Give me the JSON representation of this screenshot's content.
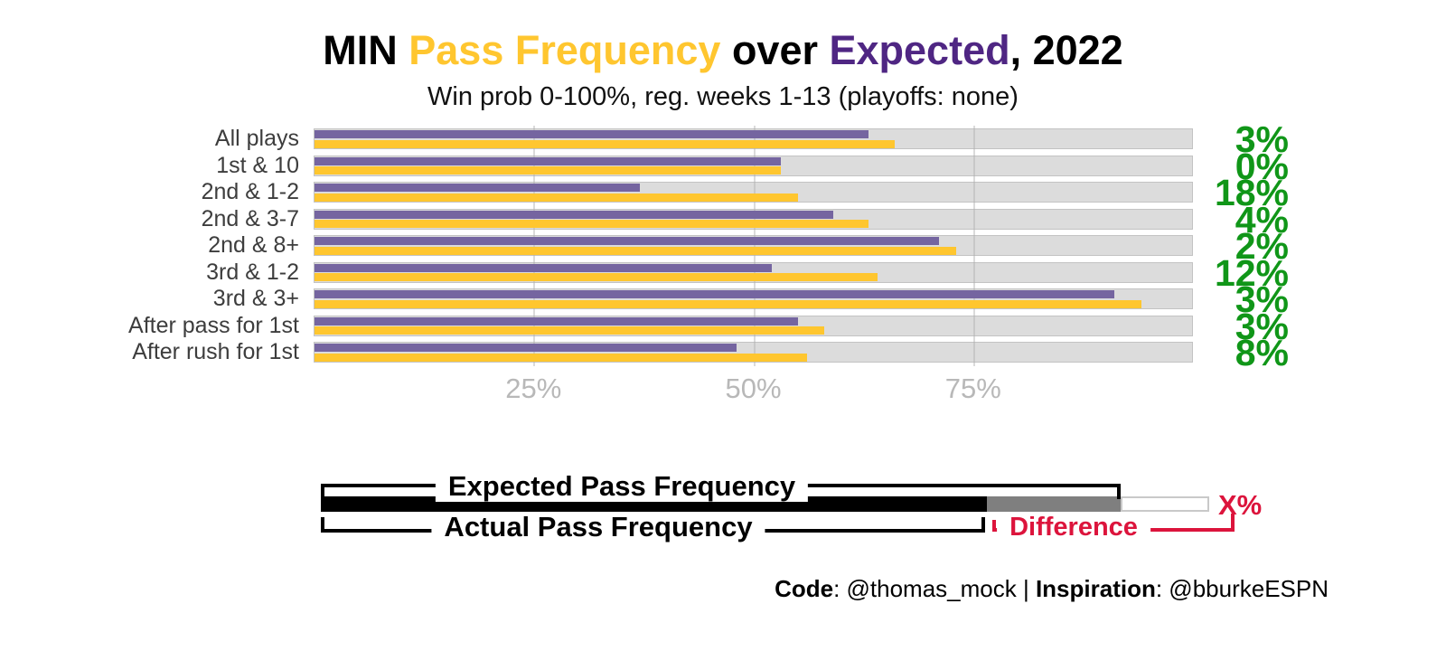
{
  "title": {
    "segments": [
      {
        "text": "MIN ",
        "color": "#000000"
      },
      {
        "text": "Pass Frequency",
        "color": "#FFC62F"
      },
      {
        "text": " over ",
        "color": "#000000"
      },
      {
        "text": "Expected",
        "color": "#4F2683"
      },
      {
        "text": ", 2022",
        "color": "#000000"
      }
    ]
  },
  "chart_data": {
    "type": "bar",
    "title": "MIN Pass Frequency over Expected, 2022",
    "subtitle": "Win prob 0-100%, reg. weeks 1-13 (playoffs: none)",
    "categories": [
      "All plays",
      "1st & 10",
      "2nd & 1-2",
      "2nd & 3-7",
      "2nd & 8+",
      "3rd & 1-2",
      "3rd & 3+",
      "After pass for 1st",
      "After rush for 1st"
    ],
    "series": [
      {
        "name": "Expected Pass Frequency",
        "values": [
          63,
          53,
          37,
          59,
          71,
          52,
          91,
          55,
          48
        ]
      },
      {
        "name": "Actual Pass Frequency",
        "values": [
          66,
          53,
          55,
          63,
          73,
          64,
          94,
          58,
          56
        ]
      }
    ],
    "diff_labels": [
      "3%",
      "0%",
      "18%",
      "4%",
      "2%",
      "12%",
      "3%",
      "3%",
      "8%"
    ],
    "x_ticks": [
      "25%",
      "50%",
      "75%"
    ],
    "x_tick_values": [
      25,
      50,
      75
    ],
    "xlim": [
      0,
      100
    ],
    "track_max": 100,
    "grid": "vertical-major",
    "legend_position": "bottom-key"
  },
  "legend": {
    "expected_label": "Expected Pass Frequency",
    "actual_label": "Actual Pass Frequency",
    "difference_label": "Difference",
    "x_label": "X%"
  },
  "caption": {
    "code_label": "Code",
    "code_value": ": @thomas_mock | ",
    "inspiration_label": "Inspiration",
    "inspiration_value": ": @bburkeESPN"
  },
  "colors": {
    "black": "#000000",
    "gold": "#FFC62F",
    "purple": "#4F2683",
    "bar_purple": "#7565A0",
    "green": "#109618",
    "red": "#DC143C",
    "gray_segment": "#7F7F7F",
    "track": "#DCDCDC",
    "axis_gray": "#B8B8B8"
  }
}
